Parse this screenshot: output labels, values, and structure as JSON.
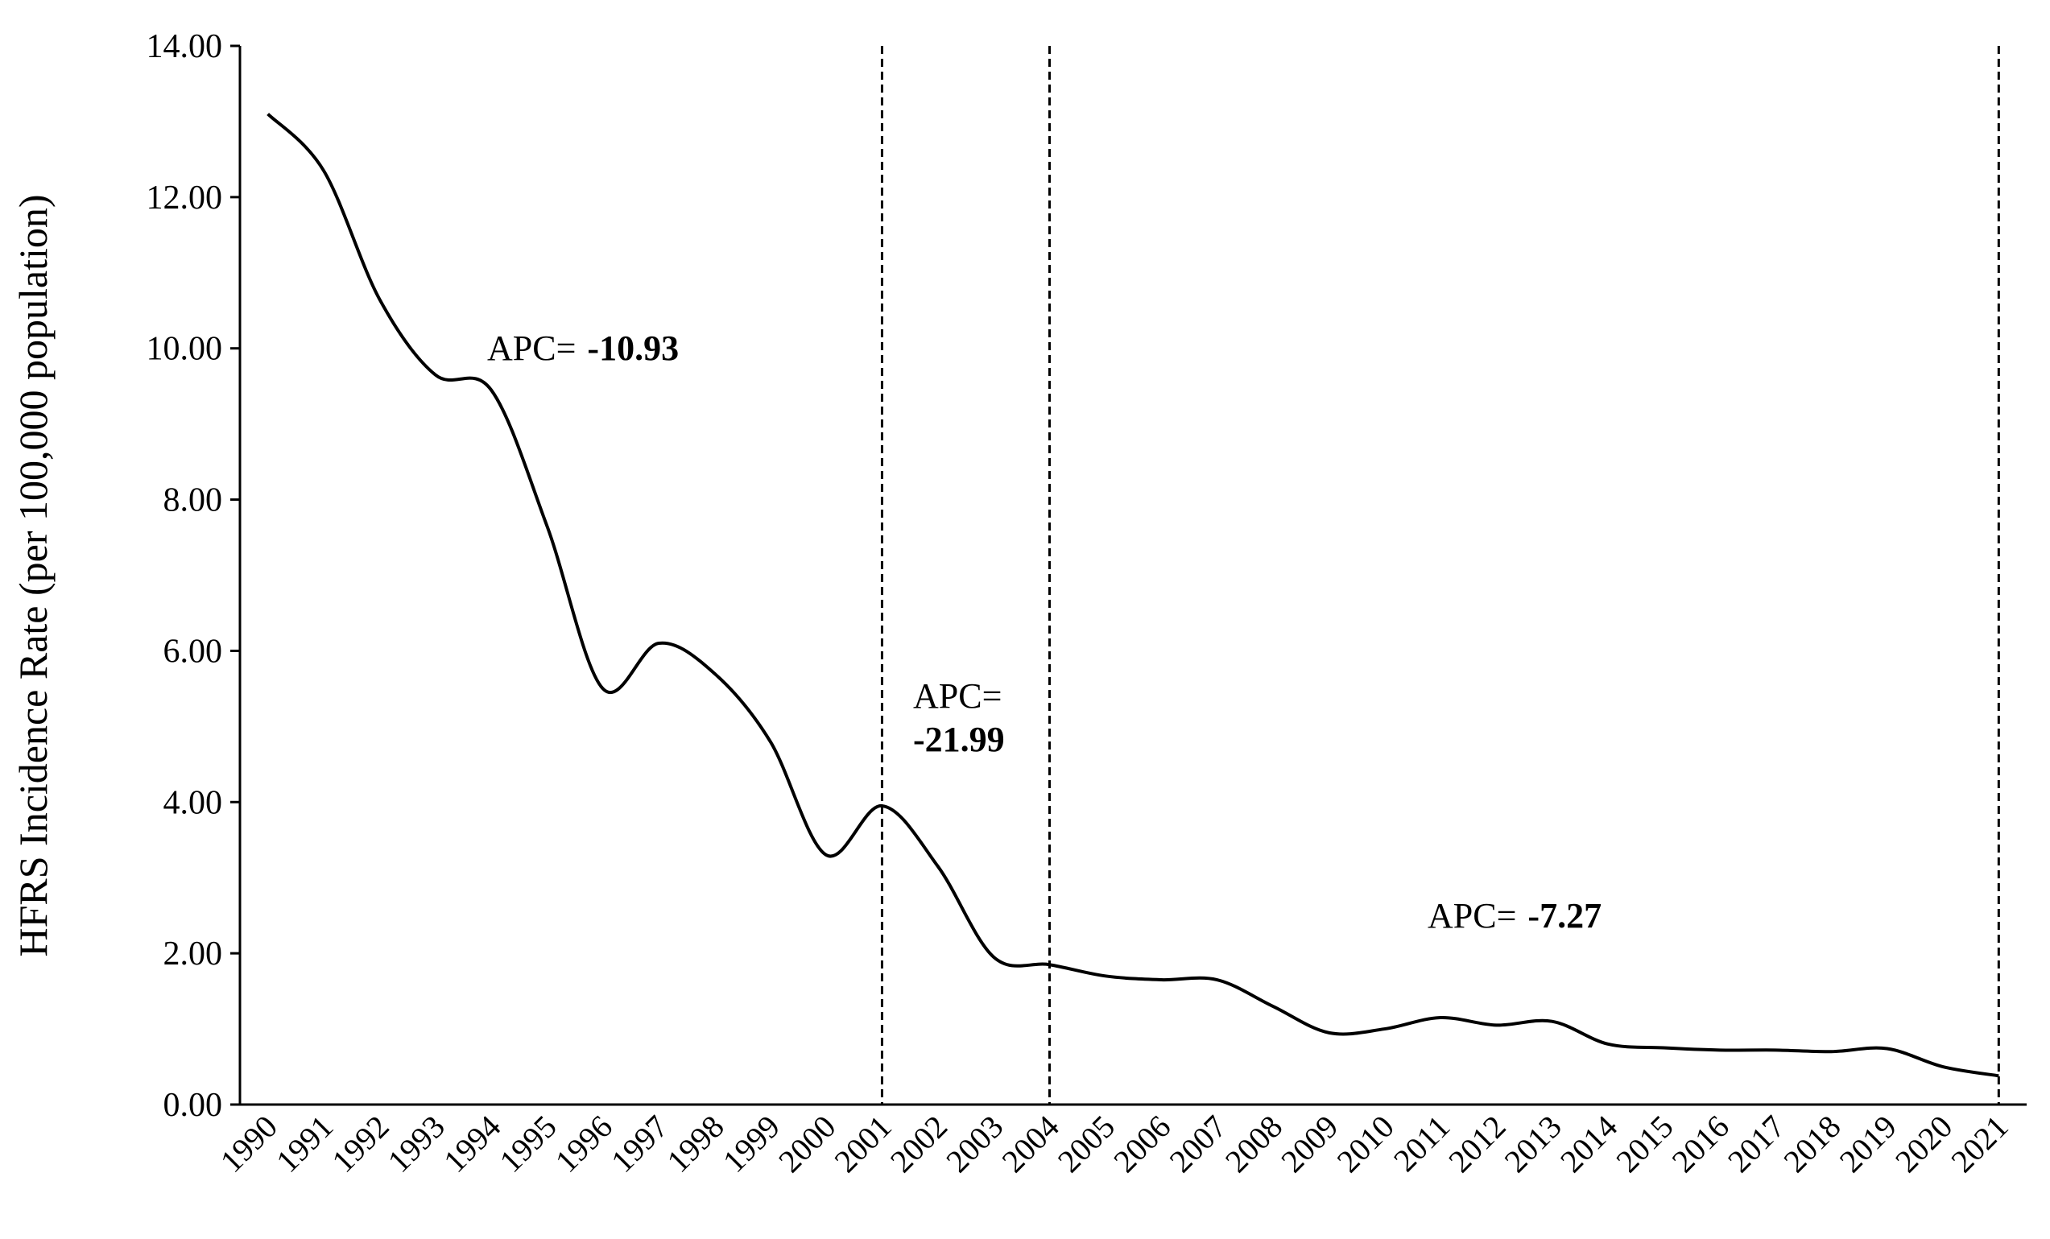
{
  "chart_data": {
    "type": "line",
    "y_label": "HFRS Incidence Rate (per 100,000 population)",
    "x": [
      1990,
      1991,
      1992,
      1993,
      1994,
      1995,
      1996,
      1997,
      1998,
      1999,
      2000,
      2001,
      2002,
      2003,
      2004,
      2005,
      2006,
      2007,
      2008,
      2009,
      2010,
      2011,
      2012,
      2013,
      2014,
      2015,
      2016,
      2017,
      2018,
      2019,
      2020,
      2021
    ],
    "series": [
      {
        "color": "#000000",
        "values": [
          13.1,
          12.35,
          10.65,
          9.65,
          9.45,
          7.65,
          5.5,
          6.1,
          5.7,
          4.8,
          3.3,
          3.95,
          3.15,
          1.95,
          1.85,
          1.7,
          1.65,
          1.65,
          1.3,
          0.95,
          1.0,
          1.15,
          1.05,
          1.1,
          0.8,
          0.75,
          0.72,
          0.72,
          0.7,
          0.74,
          0.5,
          0.38
        ]
      }
    ],
    "xlim": [
      1989.5,
      2021.5
    ],
    "ylim": [
      0,
      14
    ],
    "yticks": [
      {
        "value": 0,
        "label": "0.00"
      },
      {
        "value": 2,
        "label": "2.00"
      },
      {
        "value": 4,
        "label": "4.00"
      },
      {
        "value": 6,
        "label": "6.00"
      },
      {
        "value": 8,
        "label": "8.00"
      },
      {
        "value": 10,
        "label": "10.00"
      },
      {
        "value": 12,
        "label": "12.00"
      },
      {
        "value": 14,
        "label": "14.00"
      }
    ],
    "joinpoints": [
      2001,
      2004,
      2021
    ],
    "annotations": [
      {
        "label": "APC=",
        "value": -10.93
      },
      {
        "label": "APC=",
        "value": -21.99
      },
      {
        "label": "APC=",
        "value": -7.27
      }
    ]
  }
}
